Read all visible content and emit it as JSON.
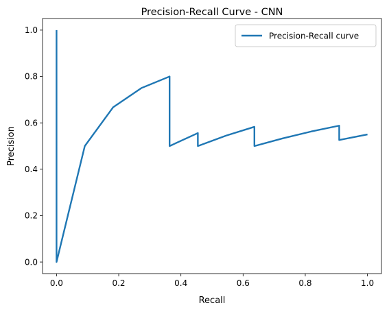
{
  "chart_data": {
    "type": "line",
    "title": "Precision-Recall Curve - CNN",
    "xlabel": "Recall",
    "ylabel": "Precision",
    "xlim": [
      -0.045,
      1.045
    ],
    "ylim": [
      -0.05,
      1.05
    ],
    "xticks": [
      0.0,
      0.2,
      0.4,
      0.6,
      0.8,
      1.0
    ],
    "xtick_labels": [
      "0.0",
      "0.2",
      "0.4",
      "0.6",
      "0.8",
      "1.0"
    ],
    "yticks": [
      0.0,
      0.2,
      0.4,
      0.6,
      0.8,
      1.0
    ],
    "ytick_labels": [
      "0.0",
      "0.2",
      "0.4",
      "0.6",
      "0.8",
      "1.0"
    ],
    "grid": false,
    "legend_position": "top-right",
    "series": [
      {
        "name": "Precision-Recall curve",
        "color": "#1f77b4",
        "x": [
          0.0,
          0.0,
          0.0909,
          0.1818,
          0.2727,
          0.3636,
          0.3636,
          0.4545,
          0.4545,
          0.5455,
          0.6364,
          0.6364,
          0.7273,
          0.8182,
          0.9091,
          0.9091,
          1.0
        ],
        "y": [
          1.0,
          0.0,
          0.5,
          0.667,
          0.75,
          0.8,
          0.5,
          0.556,
          0.5,
          0.545,
          0.583,
          0.5,
          0.533,
          0.5625,
          0.588,
          0.526,
          0.55
        ]
      }
    ]
  }
}
